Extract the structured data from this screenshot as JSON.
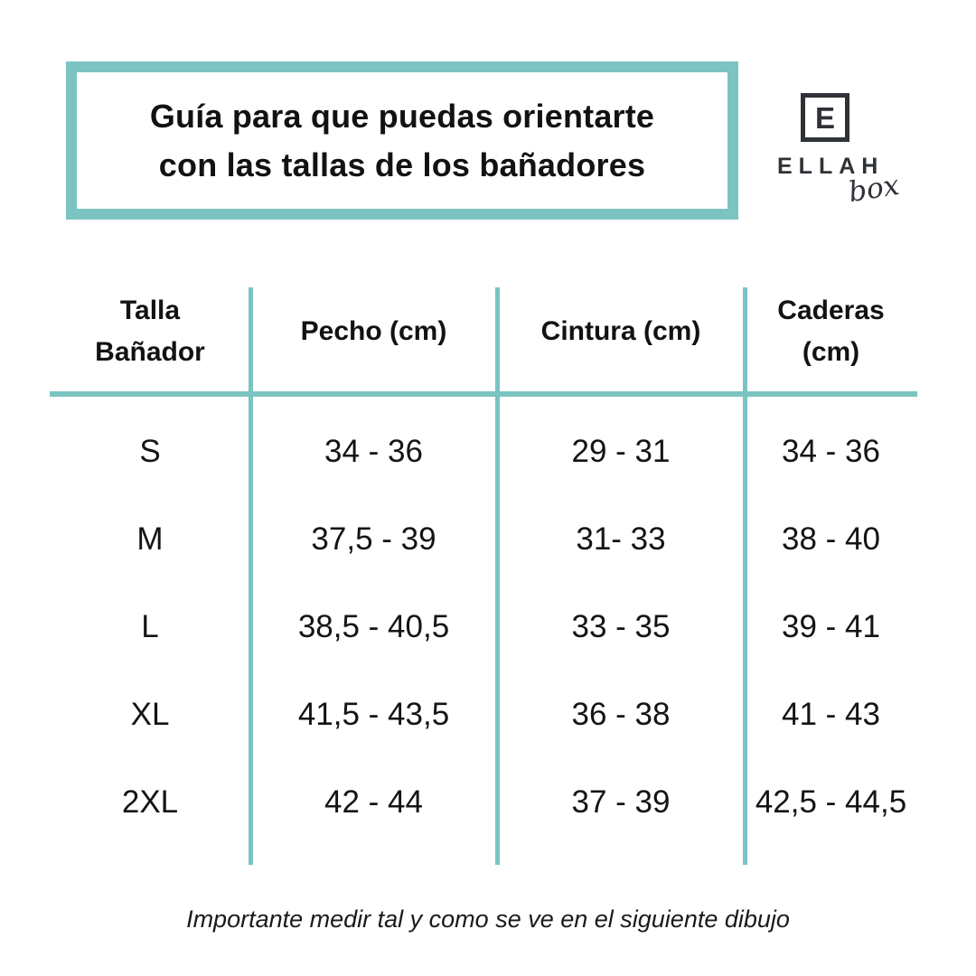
{
  "colors": {
    "accent_teal": "#7bc4c1",
    "text": "#141414",
    "logo_dark": "#2f3237",
    "background": "#ffffff"
  },
  "title_box": {
    "line1": "Guía para que puedas orientarte",
    "line2": "con las tallas de los bañadores"
  },
  "brand": {
    "monogram": "E",
    "name": "ELLAH",
    "script": "box"
  },
  "size_table": {
    "columns": [
      {
        "label_line1": "Talla",
        "label_line2": "Bañador"
      },
      {
        "label_line1": "Pecho (cm)",
        "label_line2": ""
      },
      {
        "label_line1": "Cintura (cm)",
        "label_line2": ""
      },
      {
        "label_line1": "Caderas",
        "label_line2": "(cm)"
      }
    ],
    "rows": [
      {
        "size": "S",
        "pecho": "34 - 36",
        "cintura": "29 - 31",
        "caderas": "34 - 36"
      },
      {
        "size": "M",
        "pecho": "37,5 - 39",
        "cintura": "31- 33",
        "caderas": "38 - 40"
      },
      {
        "size": "L",
        "pecho": "38,5 - 40,5",
        "cintura": "33 - 35",
        "caderas": "39 - 41"
      },
      {
        "size": "XL",
        "pecho": "41,5 - 43,5",
        "cintura": "36 - 38",
        "caderas": "41 - 43"
      },
      {
        "size": "2XL",
        "pecho": "42 - 44",
        "cintura": "37 - 39",
        "caderas": "42,5 - 44,5"
      }
    ]
  },
  "footer": {
    "note": "Importante medir tal y como se ve en el siguiente dibujo"
  },
  "chart_data": {
    "type": "table",
    "title": "Guía para que puedas orientarte con las tallas de los bañadores",
    "columns": [
      "Talla Bañador",
      "Pecho (cm)",
      "Cintura (cm)",
      "Caderas (cm)"
    ],
    "rows": [
      [
        "S",
        "34 - 36",
        "29 - 31",
        "34 - 36"
      ],
      [
        "M",
        "37,5 - 39",
        "31- 33",
        "38 - 40"
      ],
      [
        "L",
        "38,5 - 40,5",
        "33 - 35",
        "39 - 41"
      ],
      [
        "XL",
        "41,5 - 43,5",
        "36 - 38",
        "41 - 43"
      ],
      [
        "2XL",
        "42 - 44",
        "37 - 39",
        "42,5 - 44,5"
      ]
    ],
    "note": "Importante medir tal y como se ve en el siguiente dibujo"
  }
}
